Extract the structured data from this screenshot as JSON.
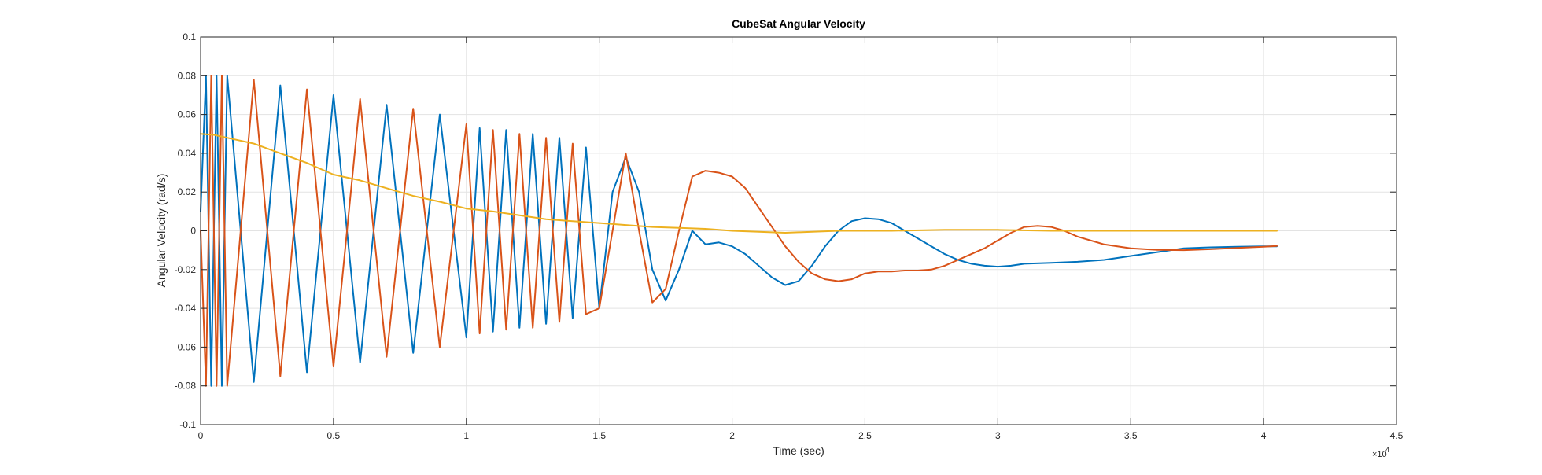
{
  "chart_data": {
    "type": "line",
    "title": "CubeSat Angular Velocity",
    "xlabel": "Time (sec)",
    "ylabel": "Angular Velocity (rad/s)",
    "x_exponent_label": "×10",
    "x_exponent_power": "4",
    "xlim": [
      0,
      4.5
    ],
    "ylim": [
      -0.1,
      0.1
    ],
    "x_ticks": [
      0,
      0.5,
      1,
      1.5,
      2,
      2.5,
      3,
      3.5,
      4,
      4.5
    ],
    "x_tick_labels": [
      "0",
      "0.5",
      "1",
      "1.5",
      "2",
      "2.5",
      "3",
      "3.5",
      "4",
      "4.5"
    ],
    "y_ticks": [
      -0.1,
      -0.08,
      -0.06,
      -0.04,
      -0.02,
      0,
      0.02,
      0.04,
      0.06,
      0.08,
      0.1
    ],
    "y_tick_labels": [
      "-0.1",
      "-0.08",
      "-0.06",
      "-0.04",
      "-0.02",
      "0",
      "0.02",
      "0.04",
      "0.06",
      "0.08",
      "0.1"
    ],
    "grid": true,
    "series": [
      {
        "color": "#0072BD",
        "x": [
          0,
          0.02,
          0.04,
          0.06,
          0.08,
          0.1,
          0.2,
          0.3,
          0.4,
          0.5,
          0.6,
          0.7,
          0.8,
          0.9,
          1.0,
          1.05,
          1.1,
          1.15,
          1.2,
          1.25,
          1.3,
          1.35,
          1.4,
          1.45,
          1.5,
          1.55,
          1.6,
          1.65,
          1.7,
          1.75,
          1.8,
          1.85,
          1.9,
          1.95,
          2.0,
          2.05,
          2.1,
          2.15,
          2.2,
          2.25,
          2.3,
          2.35,
          2.4,
          2.45,
          2.5,
          2.55,
          2.6,
          2.65,
          2.7,
          2.75,
          2.8,
          2.85,
          2.9,
          2.95,
          3.0,
          3.05,
          3.1,
          3.2,
          3.3,
          3.4,
          3.5,
          3.6,
          3.7,
          3.8,
          3.9,
          4.0,
          4.05
        ],
        "y": [
          0.01,
          0.08,
          -0.08,
          0.08,
          -0.08,
          0.08,
          -0.078,
          0.075,
          -0.073,
          0.07,
          -0.068,
          0.065,
          -0.063,
          0.06,
          -0.055,
          0.053,
          -0.052,
          0.052,
          -0.05,
          0.05,
          -0.048,
          0.048,
          -0.045,
          0.043,
          -0.04,
          0.02,
          0.038,
          0.02,
          -0.02,
          -0.036,
          -0.02,
          0.0,
          -0.007,
          -0.006,
          -0.008,
          -0.012,
          -0.018,
          -0.024,
          -0.028,
          -0.026,
          -0.018,
          -0.008,
          0.0,
          0.005,
          0.0065,
          0.006,
          0.004,
          0.0,
          -0.004,
          -0.008,
          -0.012,
          -0.015,
          -0.017,
          -0.018,
          -0.0185,
          -0.018,
          -0.017,
          -0.0165,
          -0.016,
          -0.015,
          -0.013,
          -0.011,
          -0.009,
          -0.0085,
          -0.0082,
          -0.008,
          -0.008
        ]
      },
      {
        "color": "#D95319",
        "x": [
          0,
          0.02,
          0.04,
          0.06,
          0.08,
          0.1,
          0.2,
          0.3,
          0.4,
          0.5,
          0.6,
          0.7,
          0.8,
          0.9,
          1.0,
          1.05,
          1.1,
          1.15,
          1.2,
          1.25,
          1.3,
          1.35,
          1.4,
          1.45,
          1.5,
          1.55,
          1.6,
          1.65,
          1.7,
          1.75,
          1.8,
          1.85,
          1.9,
          1.95,
          2.0,
          2.05,
          2.1,
          2.15,
          2.2,
          2.25,
          2.3,
          2.35,
          2.4,
          2.45,
          2.5,
          2.55,
          2.6,
          2.65,
          2.7,
          2.75,
          2.8,
          2.85,
          2.9,
          2.95,
          3.0,
          3.05,
          3.1,
          3.15,
          3.2,
          3.25,
          3.3,
          3.4,
          3.5,
          3.6,
          3.7,
          3.8,
          3.9,
          4.0,
          4.05
        ],
        "y": [
          0.0,
          -0.08,
          0.08,
          -0.08,
          0.08,
          -0.08,
          0.078,
          -0.075,
          0.073,
          -0.07,
          0.068,
          -0.065,
          0.063,
          -0.06,
          0.055,
          -0.053,
          0.052,
          -0.051,
          0.05,
          -0.05,
          0.048,
          -0.047,
          0.045,
          -0.043,
          -0.04,
          0.0,
          0.04,
          0.0,
          -0.037,
          -0.03,
          0.0,
          0.028,
          0.031,
          0.03,
          0.028,
          0.022,
          0.012,
          0.002,
          -0.008,
          -0.016,
          -0.022,
          -0.025,
          -0.026,
          -0.025,
          -0.022,
          -0.021,
          -0.021,
          -0.0205,
          -0.0205,
          -0.02,
          -0.018,
          -0.015,
          -0.012,
          -0.009,
          -0.005,
          -0.001,
          0.002,
          0.0025,
          0.002,
          0.0,
          -0.003,
          -0.007,
          -0.009,
          -0.0098,
          -0.01,
          -0.0095,
          -0.0088,
          -0.0082,
          -0.0078
        ]
      },
      {
        "color": "#EDB120",
        "x": [
          0,
          0.05,
          0.1,
          0.2,
          0.3,
          0.4,
          0.5,
          0.6,
          0.7,
          0.8,
          0.9,
          1.0,
          1.1,
          1.2,
          1.3,
          1.4,
          1.5,
          1.6,
          1.7,
          1.8,
          1.9,
          2.0,
          2.2,
          2.4,
          2.6,
          2.8,
          3.0,
          3.2,
          3.4,
          3.6,
          3.8,
          4.0,
          4.05
        ],
        "y": [
          0.05,
          0.0495,
          0.048,
          0.045,
          0.04,
          0.035,
          0.029,
          0.026,
          0.022,
          0.018,
          0.015,
          0.0115,
          0.01,
          0.008,
          0.006,
          0.005,
          0.004,
          0.003,
          0.002,
          0.0015,
          0.001,
          0.0,
          -0.001,
          0.0,
          0.0,
          0.0005,
          0.0005,
          0.0,
          0.0,
          0.0,
          0.0,
          0.0,
          0.0
        ]
      }
    ]
  }
}
